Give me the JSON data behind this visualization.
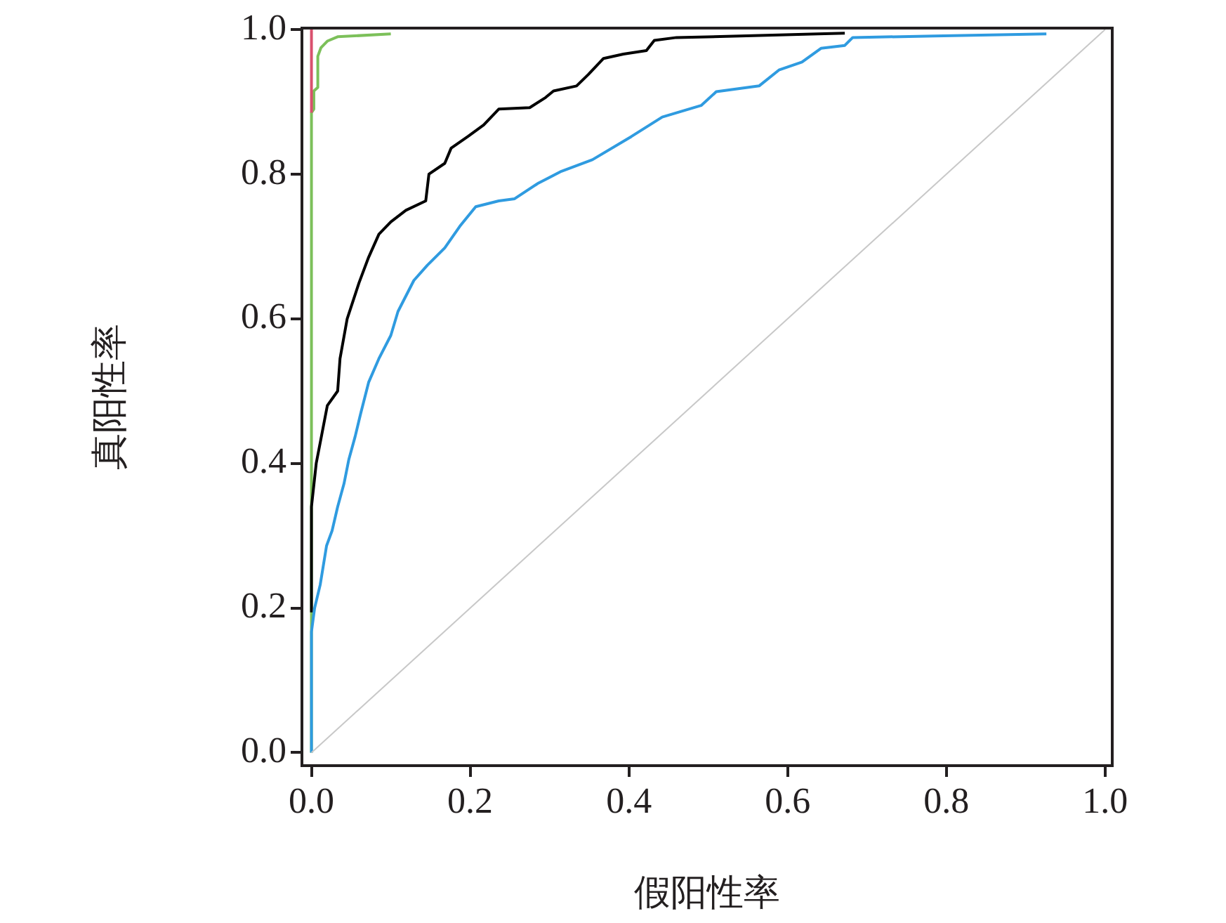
{
  "chart_data": {
    "type": "line",
    "xlabel": "假阳性率",
    "ylabel": "真阳性率",
    "xlim": [
      -0.012,
      1.009
    ],
    "ylim": [
      -0.018,
      1.002
    ],
    "xticks": [
      {
        "value": 0,
        "label": "0.0"
      },
      {
        "value": 0.2,
        "label": "0.2"
      },
      {
        "value": 0.4,
        "label": "0.4"
      },
      {
        "value": 0.6,
        "label": "0.6"
      },
      {
        "value": 0.8,
        "label": "0.8"
      },
      {
        "value": 1,
        "label": "1.0"
      }
    ],
    "yticks": [
      {
        "value": 0,
        "label": "0.0"
      },
      {
        "value": 0.2,
        "label": "0.2"
      },
      {
        "value": 0.4,
        "label": "0.4"
      },
      {
        "value": 0.6,
        "label": "0.6"
      },
      {
        "value": 0.8,
        "label": "0.8"
      },
      {
        "value": 1,
        "label": "1.0"
      }
    ],
    "grid": false,
    "legend": false,
    "series": [
      {
        "color": "#c8c8c8",
        "x": [
          0,
          1
        ],
        "values": [
          0,
          1
        ]
      },
      {
        "type": "line",
        "color": "#2f9be0",
        "x": [
          0,
          0,
          0.004,
          0.011,
          0.019,
          0.026,
          0.033,
          0.041,
          0.047,
          0.055,
          0.062,
          0.072,
          0.085,
          0.1,
          0.109,
          0.129,
          0.146,
          0.168,
          0.187,
          0.207,
          0.236,
          0.256,
          0.285,
          0.315,
          0.354,
          0.403,
          0.442,
          0.491,
          0.51,
          0.564,
          0.589,
          0.618,
          0.642,
          0.672,
          0.682,
          0.785,
          0.926
        ],
        "values": [
          0,
          0.167,
          0.2,
          0.232,
          0.286,
          0.307,
          0.34,
          0.372,
          0.405,
          0.437,
          0.469,
          0.512,
          0.545,
          0.577,
          0.61,
          0.653,
          0.674,
          0.698,
          0.728,
          0.755,
          0.763,
          0.766,
          0.787,
          0.804,
          0.82,
          0.852,
          0.879,
          0.895,
          0.914,
          0.922,
          0.944,
          0.955,
          0.974,
          0.978,
          0.989,
          0.991,
          0.994
        ]
      },
      {
        "color": "#000000",
        "x": [
          0,
          0,
          0.006,
          0.013,
          0.02,
          0.033,
          0.036,
          0.045,
          0.06,
          0.072,
          0.085,
          0.1,
          0.119,
          0.144,
          0.148,
          0.168,
          0.176,
          0.197,
          0.217,
          0.236,
          0.275,
          0.295,
          0.305,
          0.334,
          0.349,
          0.368,
          0.393,
          0.422,
          0.432,
          0.46,
          0.54,
          0.638,
          0.672
        ],
        "values": [
          0.194,
          0.34,
          0.4,
          0.44,
          0.48,
          0.5,
          0.545,
          0.6,
          0.65,
          0.685,
          0.717,
          0.734,
          0.75,
          0.763,
          0.8,
          0.815,
          0.836,
          0.852,
          0.868,
          0.89,
          0.892,
          0.906,
          0.915,
          0.922,
          0.938,
          0.96,
          0.966,
          0.971,
          0.985,
          0.989,
          0.991,
          0.994,
          0.995
        ]
      },
      {
        "color": "#d9506e",
        "x": [
          0,
          0
        ],
        "values": [
          0.885,
          1
        ]
      },
      {
        "color": "#7cc05a",
        "x": [
          0,
          0,
          0.003,
          0.003,
          0.008,
          0.008,
          0.012,
          0.02,
          0.033,
          0.1
        ],
        "values": [
          0,
          0.885,
          0.89,
          0.915,
          0.92,
          0.963,
          0.975,
          0.984,
          0.99,
          0.994
        ]
      }
    ]
  }
}
